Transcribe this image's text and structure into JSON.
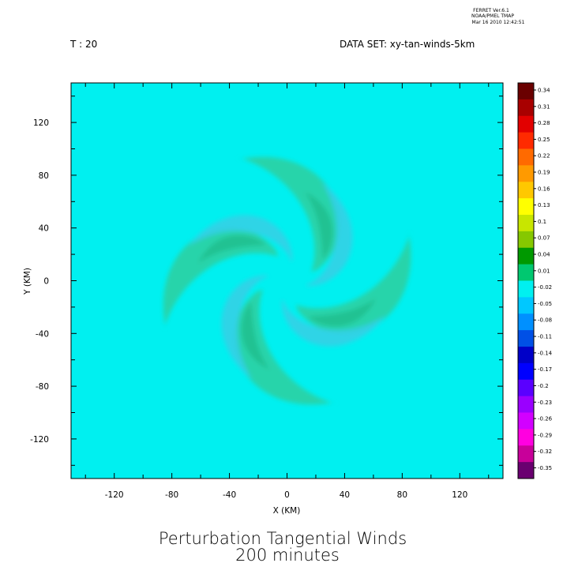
{
  "header": {
    "stamp_line1": "FERRET Ver.6.1",
    "stamp_line2": "NOAA/PMEL TMAP",
    "stamp_line3": "Mar 16 2010 12:42:51",
    "time_label": "T : 20",
    "dataset_label": "DATA SET: xy-tan-winds-5km"
  },
  "footer": {
    "title": "Perturbation Tangential Winds",
    "subtitle": "200 minutes"
  },
  "colors": {
    "background_field": "#00f0f0",
    "negative_band": "#33d0e6",
    "positive_band": "#2ecf9e",
    "strong_positive": "#21b884"
  },
  "chart_data": {
    "type": "heatmap",
    "xlabel": "X (KM)",
    "ylabel": "Y (KM)",
    "xlim": [
      -150,
      150
    ],
    "ylim": [
      -150,
      150
    ],
    "x_ticks": [
      -120,
      -80,
      -40,
      0,
      40,
      80,
      120
    ],
    "y_ticks": [
      120,
      80,
      40,
      0,
      -40,
      -80,
      -120
    ],
    "x_tick_labels": [
      "-120",
      "-80",
      "-40",
      "0",
      "40",
      "80",
      "120"
    ],
    "y_tick_labels": [
      "120",
      "80",
      "40",
      "0",
      "-40",
      "-80",
      "-120"
    ],
    "minor_tick_step": 20,
    "pattern": "four-armed spiral of alternating positive and negative perturbation tangential wind around the center",
    "value_range": [
      -0.35,
      0.34
    ],
    "colorbar_levels": [
      "0.34",
      "0.31",
      "0.28",
      "0.25",
      "0.22",
      "0.19",
      "0.16",
      "0.13",
      "0.1",
      "0.07",
      "0.04",
      "0.01",
      "-0.02",
      "-0.05",
      "-0.08",
      "-0.11",
      "-0.14",
      "-0.17",
      "-0.2",
      "-0.23",
      "-0.26",
      "-0.29",
      "-0.32",
      "-0.35"
    ],
    "colorbar_colors": [
      "#6a0000",
      "#a80000",
      "#e20000",
      "#ff2a00",
      "#ff6a00",
      "#ff9a00",
      "#ffc800",
      "#ffff00",
      "#c8e600",
      "#86c800",
      "#009900",
      "#00c870",
      "#00f0f0",
      "#00c8ff",
      "#0090ff",
      "#0050e6",
      "#0000c8",
      "#0000ff",
      "#5a00ff",
      "#9a00ff",
      "#d200ff",
      "#ff00e0",
      "#c8009a",
      "#6a0070"
    ]
  }
}
